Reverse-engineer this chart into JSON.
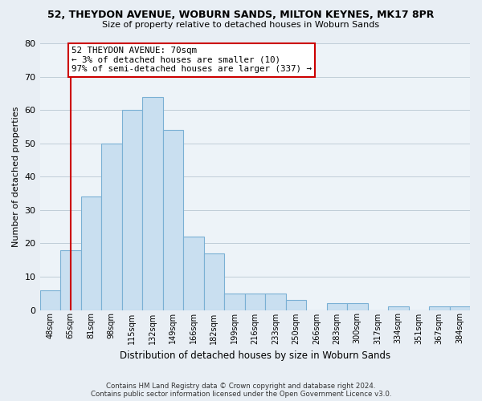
{
  "title": "52, THEYDON AVENUE, WOBURN SANDS, MILTON KEYNES, MK17 8PR",
  "subtitle": "Size of property relative to detached houses in Woburn Sands",
  "xlabel": "Distribution of detached houses by size in Woburn Sands",
  "ylabel": "Number of detached properties",
  "bin_labels": [
    "48sqm",
    "65sqm",
    "81sqm",
    "98sqm",
    "115sqm",
    "132sqm",
    "149sqm",
    "166sqm",
    "182sqm",
    "199sqm",
    "216sqm",
    "233sqm",
    "250sqm",
    "266sqm",
    "283sqm",
    "300sqm",
    "317sqm",
    "334sqm",
    "351sqm",
    "367sqm",
    "384sqm"
  ],
  "bar_heights": [
    6,
    18,
    34,
    50,
    60,
    64,
    54,
    22,
    17,
    5,
    5,
    5,
    3,
    0,
    2,
    2,
    0,
    1,
    0,
    1,
    1
  ],
  "bar_color": "#c9dff0",
  "bar_edge_color": "#7ab0d4",
  "vline_x_index": 1,
  "vline_color": "#cc0000",
  "annotation_line1": "52 THEYDON AVENUE: 70sqm",
  "annotation_line2": "← 3% of detached houses are smaller (10)",
  "annotation_line3": "97% of semi-detached houses are larger (337) →",
  "annotation_box_color": "#ffffff",
  "annotation_box_edge": "#cc0000",
  "ylim": [
    0,
    80
  ],
  "yticks": [
    0,
    10,
    20,
    30,
    40,
    50,
    60,
    70,
    80
  ],
  "footnote": "Contains HM Land Registry data © Crown copyright and database right 2024.\nContains public sector information licensed under the Open Government Licence v3.0.",
  "bg_color": "#e8eef4",
  "plot_bg_color": "#edf3f8",
  "grid_color": "#c0cdd8"
}
